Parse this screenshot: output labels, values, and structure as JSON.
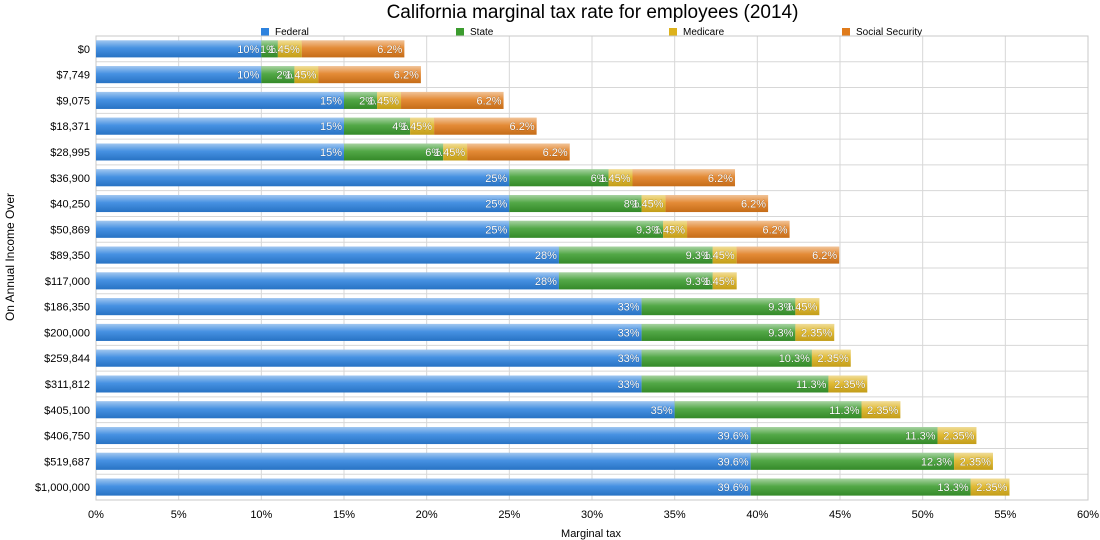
{
  "chart_data": {
    "type": "bar",
    "orientation": "horizontal",
    "stacked": true,
    "title": "California marginal tax rate for employees (2014)",
    "xlabel": "Marginal tax",
    "ylabel": "On Annual Income Over",
    "xlim": [
      0,
      60
    ],
    "x_ticks": [
      "0%",
      "5%",
      "10%",
      "15%",
      "20%",
      "25%",
      "30%",
      "35%",
      "40%",
      "45%",
      "50%",
      "55%",
      "60%"
    ],
    "grid": true,
    "legend_position": "top",
    "categories": [
      "$0",
      "$7,749",
      "$9,075",
      "$18,371",
      "$28,995",
      "$36,900",
      "$40,250",
      "$50,869",
      "$89,350",
      "$117,000",
      "$186,350",
      "$200,000",
      "$259,844",
      "$311,812",
      "$405,100",
      "$406,750",
      "$519,687",
      "$1,000,000"
    ],
    "series": [
      {
        "name": "Federal",
        "color": "#2d82de",
        "values": [
          10,
          10,
          15,
          15,
          15,
          25,
          25,
          25,
          28,
          28,
          33,
          33,
          33,
          33,
          35,
          39.6,
          39.6,
          39.6
        ],
        "labels": [
          "10%",
          "10%",
          "15%",
          "15%",
          "15%",
          "25%",
          "25%",
          "25%",
          "28%",
          "28%",
          "33%",
          "33%",
          "33%",
          "33%",
          "35%",
          "39.6%",
          "39.6%",
          "39.6%"
        ]
      },
      {
        "name": "State",
        "color": "#3b9c2e",
        "values": [
          1,
          2,
          2,
          4,
          6,
          6,
          8,
          9.3,
          9.3,
          9.3,
          9.3,
          9.3,
          10.3,
          11.3,
          11.3,
          11.3,
          12.3,
          13.3
        ],
        "labels": [
          "1%",
          "2%",
          "2%",
          "4%",
          "6%",
          "6%",
          "8%",
          "9.3%",
          "9.3%",
          "9.3%",
          "9.3%",
          "9.3%",
          "10.3%",
          "11.3%",
          "11.3%",
          "11.3%",
          "12.3%",
          "13.3%"
        ]
      },
      {
        "name": "Medicare",
        "color": "#ddb21c",
        "values": [
          1.45,
          1.45,
          1.45,
          1.45,
          1.45,
          1.45,
          1.45,
          1.45,
          1.45,
          1.45,
          1.45,
          2.35,
          2.35,
          2.35,
          2.35,
          2.35,
          2.35,
          2.35
        ],
        "labels": [
          "1.45%",
          "1.45%",
          "1.45%",
          "1.45%",
          "1.45%",
          "1.45%",
          "1.45%",
          "1.45%",
          "1.45%",
          "1.45%",
          "1.45%",
          "2.35%",
          "2.35%",
          "2.35%",
          "2.35%",
          "2.35%",
          "2.35%",
          "2.35%"
        ]
      },
      {
        "name": "Social Security",
        "color": "#e07b1b",
        "values": [
          6.2,
          6.2,
          6.2,
          6.2,
          6.2,
          6.2,
          6.2,
          6.2,
          6.2,
          0,
          0,
          0,
          0,
          0,
          0,
          0,
          0,
          0
        ],
        "labels": [
          "6.2%",
          "6.2%",
          "6.2%",
          "6.2%",
          "6.2%",
          "6.2%",
          "6.2%",
          "6.2%",
          "6.2%",
          "",
          "",
          "",
          "",
          "",
          "",
          "",
          "",
          ""
        ]
      }
    ]
  }
}
